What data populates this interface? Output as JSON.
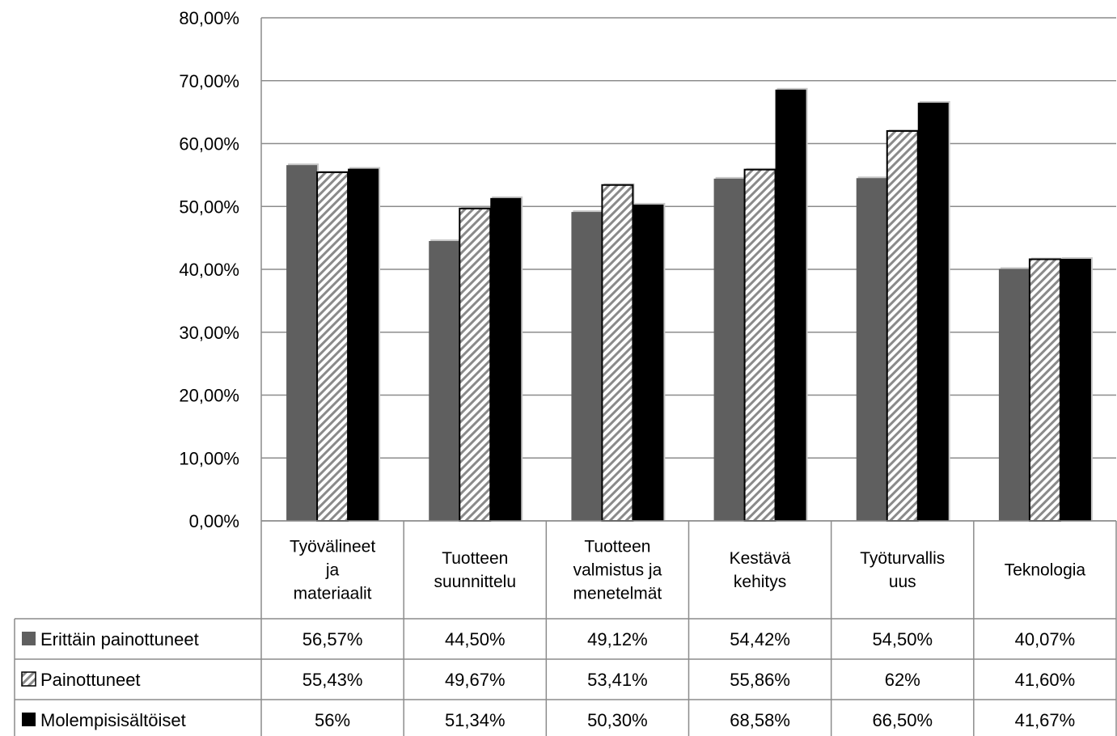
{
  "chart_data": {
    "type": "bar",
    "title": "",
    "xlabel": "",
    "ylabel": "",
    "ylim": [
      0,
      80
    ],
    "y_ticks": [
      "0,00%",
      "10,00%",
      "20,00%",
      "30,00%",
      "40,00%",
      "50,00%",
      "60,00%",
      "70,00%",
      "80,00%"
    ],
    "grid": true,
    "legend": "data table below chart",
    "categories": [
      [
        "Työvälineet",
        "ja",
        "materiaalit"
      ],
      [
        "Tuotteen",
        "suunnittelu"
      ],
      [
        "Tuotteen",
        "valmistus ja",
        "menetelmät"
      ],
      [
        "Kestävä",
        "kehitys"
      ],
      [
        "Työturvallis",
        "uus"
      ],
      [
        "Teknologia"
      ]
    ],
    "series": [
      {
        "name": "Erittäin painottuneet",
        "values": [
          56.57,
          44.5,
          49.12,
          54.42,
          54.5,
          40.07
        ],
        "labels": [
          "56,57%",
          "44,50%",
          "49,12%",
          "54,42%",
          "54,50%",
          "40,07%"
        ],
        "color": "#5f5f5f",
        "pattern": "solid"
      },
      {
        "name": "Painottuneet",
        "values": [
          55.43,
          49.67,
          53.41,
          55.86,
          62,
          41.6
        ],
        "labels": [
          "55,43%",
          "49,67%",
          "53,41%",
          "55,86%",
          "62%",
          "41,60%"
        ],
        "color": "#ffffff",
        "pattern": "hatched"
      },
      {
        "name": "Molempisisältöiset",
        "values": [
          56,
          51.34,
          50.3,
          68.58,
          66.5,
          41.67
        ],
        "labels": [
          "56%",
          "51,34%",
          "50,30%",
          "68,58%",
          "66,50%",
          "41,67%"
        ],
        "color": "#000000",
        "pattern": "solid"
      }
    ]
  }
}
